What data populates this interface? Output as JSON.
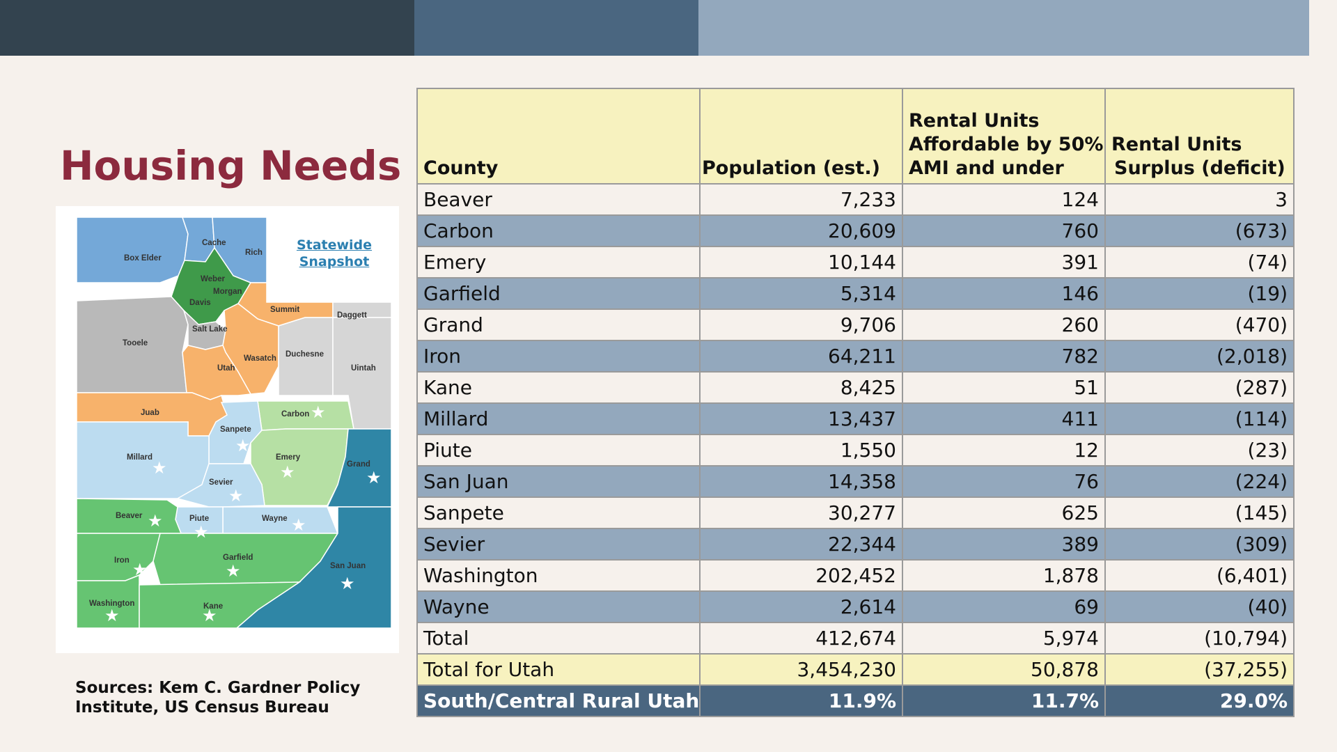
{
  "page": {
    "title": "Housing Needs",
    "sources": "Sources: Kem C. Gardner Policy Institute, US Census Bureau"
  },
  "map": {
    "link_label_line1": "Statewide",
    "link_label_line2": "Snapshot",
    "counties": {
      "box_elder": "Box Elder",
      "cache": "Cache",
      "rich": "Rich",
      "weber": "Weber",
      "morgan": "Morgan",
      "davis": "Davis",
      "summit": "Summit",
      "daggett": "Daggett",
      "salt_lake": "Salt Lake",
      "tooele": "Tooele",
      "wasatch": "Wasatch",
      "duchesne": "Duchesne",
      "uintah": "Uintah",
      "utah": "Utah",
      "juab": "Juab",
      "carbon": "Carbon",
      "sanpete": "Sanpete",
      "millard": "Millard",
      "emery": "Emery",
      "grand": "Grand",
      "sevier": "Sevier",
      "beaver": "Beaver",
      "piute": "Piute",
      "wayne": "Wayne",
      "iron": "Iron",
      "garfield": "Garfield",
      "san_juan": "San Juan",
      "washington": "Washington",
      "kane": "Kane"
    },
    "colors": {
      "north": "#74a8d8",
      "wasatch_front": "#3f9a4a",
      "gray": "#b9b9b9",
      "light_gray": "#d6d6d6",
      "orange": "#f7b26b",
      "light_blue": "#bcdcf0",
      "light_green": "#b6e0a4",
      "green": "#66c472",
      "teal": "#2f86a6"
    }
  },
  "table": {
    "headers": {
      "county": "County",
      "population": "Population (est.)",
      "rental_line1": "Rental Units",
      "rental_line2": "Affordable by 50%",
      "rental_line3": "AMI and under",
      "surplus_line1": "Rental Units",
      "surplus_line2": "Surplus (deficit)"
    },
    "rows": [
      {
        "county": "Beaver",
        "population": "7,233",
        "units": "124",
        "surplus": "3"
      },
      {
        "county": "Carbon",
        "population": "20,609",
        "units": "760",
        "surplus": "(673)"
      },
      {
        "county": "Emery",
        "population": "10,144",
        "units": "391",
        "surplus": "(74)"
      },
      {
        "county": "Garfield",
        "population": "5,314",
        "units": "146",
        "surplus": "(19)"
      },
      {
        "county": "Grand",
        "population": "9,706",
        "units": "260",
        "surplus": "(470)"
      },
      {
        "county": "Iron",
        "population": "64,211",
        "units": "782",
        "surplus": "(2,018)"
      },
      {
        "county": "Kane",
        "population": "8,425",
        "units": "51",
        "surplus": "(287)"
      },
      {
        "county": "Millard",
        "population": "13,437",
        "units": "411",
        "surplus": "(114)"
      },
      {
        "county": "Piute",
        "population": "1,550",
        "units": "12",
        "surplus": "(23)"
      },
      {
        "county": "San Juan",
        "population": "14,358",
        "units": "76",
        "surplus": "(224)"
      },
      {
        "county": "Sanpete",
        "population": "30,277",
        "units": "625",
        "surplus": "(145)"
      },
      {
        "county": "Sevier",
        "population": "22,344",
        "units": "389",
        "surplus": "(309)"
      },
      {
        "county": "Washington",
        "population": "202,452",
        "units": "1,878",
        "surplus": "(6,401)"
      },
      {
        "county": "Wayne",
        "population": "2,614",
        "units": "69",
        "surplus": "(40)"
      }
    ],
    "total": {
      "county": "Total",
      "population": "412,674",
      "units": "5,974",
      "surplus": "(10,794)"
    },
    "total_utah": {
      "county": "Total for Utah",
      "population": "3,454,230",
      "units": "50,878",
      "surplus": "(37,255)"
    },
    "share": {
      "county": "South/Central Rural Utah",
      "population": "11.9%",
      "units": "11.7%",
      "surplus": "29.0%"
    }
  }
}
